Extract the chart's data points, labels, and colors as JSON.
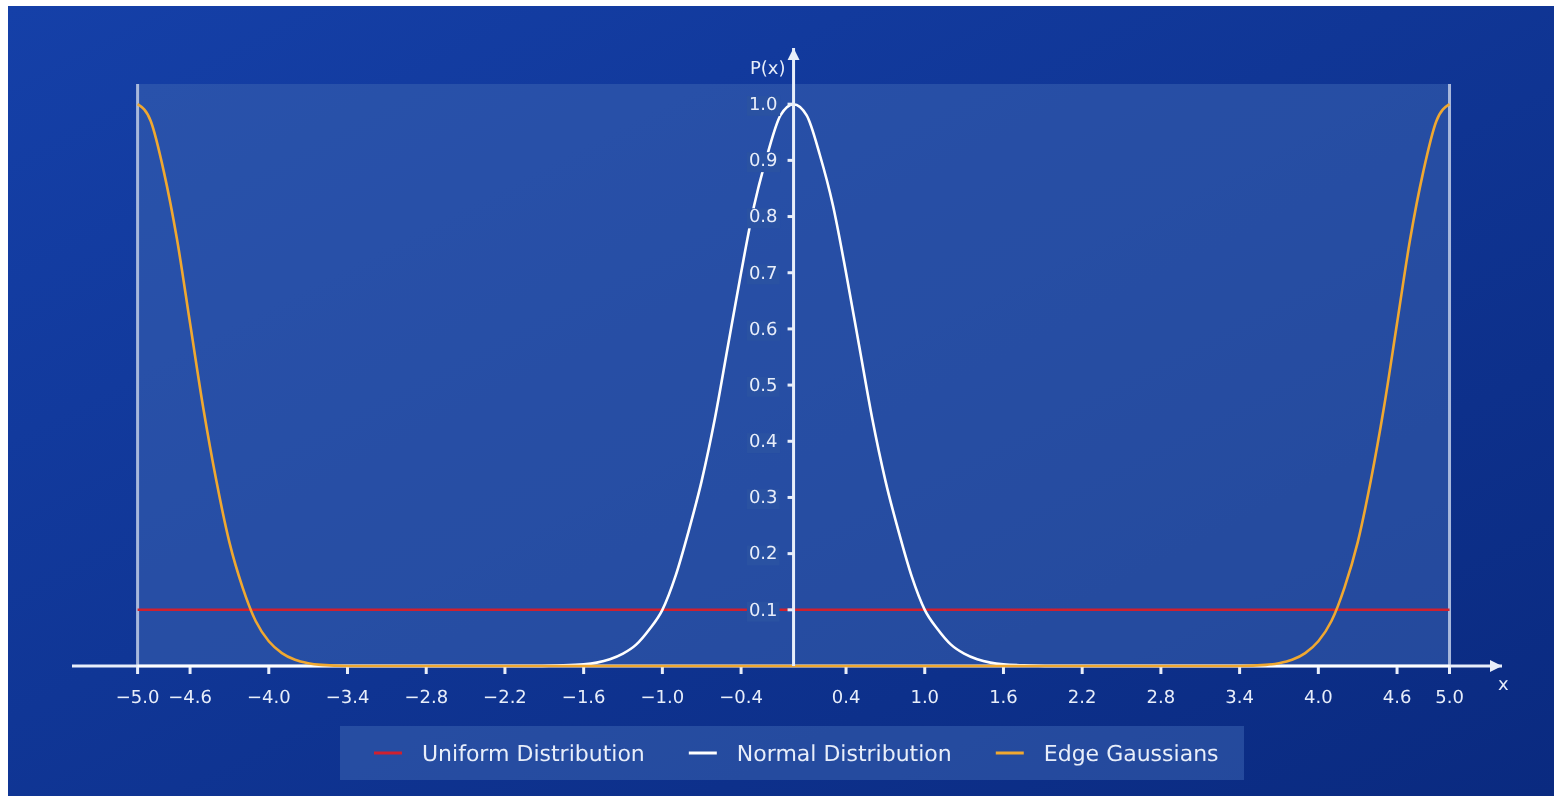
{
  "chart_data": {
    "type": "line",
    "xlabel": "x",
    "ylabel": "P(x)",
    "xlim": [
      -5.5,
      5.4
    ],
    "ylim": [
      0,
      1.1
    ],
    "xticks": [
      {
        "value": -5,
        "label": "−5.0"
      },
      {
        "value": -4.6,
        "label": "−4.6"
      },
      {
        "value": -4,
        "label": "−4.0"
      },
      {
        "value": -3.4,
        "label": "−3.4"
      },
      {
        "value": -2.8,
        "label": "−2.8"
      },
      {
        "value": -2.2,
        "label": "−2.2"
      },
      {
        "value": -1.6,
        "label": "−1.6"
      },
      {
        "value": -1,
        "label": "−1.0"
      },
      {
        "value": -0.4,
        "label": "−0.4"
      },
      {
        "value": 0.4,
        "label": "0.4"
      },
      {
        "value": 1,
        "label": "1.0"
      },
      {
        "value": 1.6,
        "label": "1.6"
      },
      {
        "value": 2.2,
        "label": "2.2"
      },
      {
        "value": 2.8,
        "label": "2.8"
      },
      {
        "value": 3.4,
        "label": "3.4"
      },
      {
        "value": 4,
        "label": "4.0"
      },
      {
        "value": 4.6,
        "label": "4.6"
      },
      {
        "value": 5,
        "label": "5.0"
      }
    ],
    "yticks": [
      0.1,
      0.2,
      0.3,
      0.4,
      0.5,
      0.6,
      0.7,
      0.8,
      0.9,
      {
        "value": 1,
        "label": "1.0"
      }
    ],
    "bands": [
      {
        "axis": "x",
        "from": -5,
        "to": 5,
        "color": "#3a62b0"
      }
    ],
    "legend": "bottom",
    "grid": false,
    "series": [
      {
        "name": "Uniform Distribution",
        "color": "#d0202e",
        "x": [
          -5,
          5
        ],
        "values": [
          0.1,
          0.1
        ]
      },
      {
        "name": "Normal Distribution",
        "color": "#ffffff",
        "x": [
          -5,
          -2,
          -1.8,
          -1.6,
          -1.5,
          -1.4,
          -1.3,
          -1.2,
          -1.1,
          -1,
          -0.9,
          -0.8,
          -0.7,
          -0.6,
          -0.5,
          -0.4,
          -0.3,
          -0.2,
          -0.1,
          0,
          0.1,
          0.2,
          0.3,
          0.4,
          0.5,
          0.6,
          0.7,
          0.8,
          0.9,
          1,
          1.1,
          1.2,
          1.3,
          1.4,
          1.5,
          1.6,
          1.8,
          2,
          5
        ],
        "values": [
          0,
          0,
          0.001,
          0.003,
          0.006,
          0.012,
          0.022,
          0.038,
          0.065,
          0.1,
          0.16,
          0.24,
          0.33,
          0.44,
          0.57,
          0.7,
          0.82,
          0.91,
          0.98,
          1,
          0.98,
          0.91,
          0.82,
          0.7,
          0.57,
          0.44,
          0.33,
          0.24,
          0.16,
          0.1,
          0.065,
          0.038,
          0.022,
          0.012,
          0.006,
          0.003,
          0.001,
          0,
          0
        ]
      },
      {
        "name": "Edge Gaussians",
        "color": "#f0a830",
        "x": [
          -5,
          -4.9,
          -4.8,
          -4.7,
          -4.6,
          -4.5,
          -4.4,
          -4.3,
          -4.2,
          -4.1,
          -4,
          -3.9,
          -3.8,
          -3.7,
          -3.6,
          -3.4,
          3.4,
          3.6,
          3.7,
          3.8,
          3.9,
          4,
          4.1,
          4.2,
          4.3,
          4.4,
          4.5,
          4.6,
          4.7,
          4.8,
          4.9,
          5
        ],
        "values": [
          1,
          0.97,
          0.88,
          0.76,
          0.61,
          0.46,
          0.33,
          0.22,
          0.14,
          0.08,
          0.044,
          0.023,
          0.011,
          0.005,
          0.002,
          0,
          0,
          0.002,
          0.005,
          0.011,
          0.023,
          0.044,
          0.08,
          0.14,
          0.22,
          0.33,
          0.46,
          0.61,
          0.76,
          0.88,
          0.97,
          1
        ]
      }
    ]
  }
}
